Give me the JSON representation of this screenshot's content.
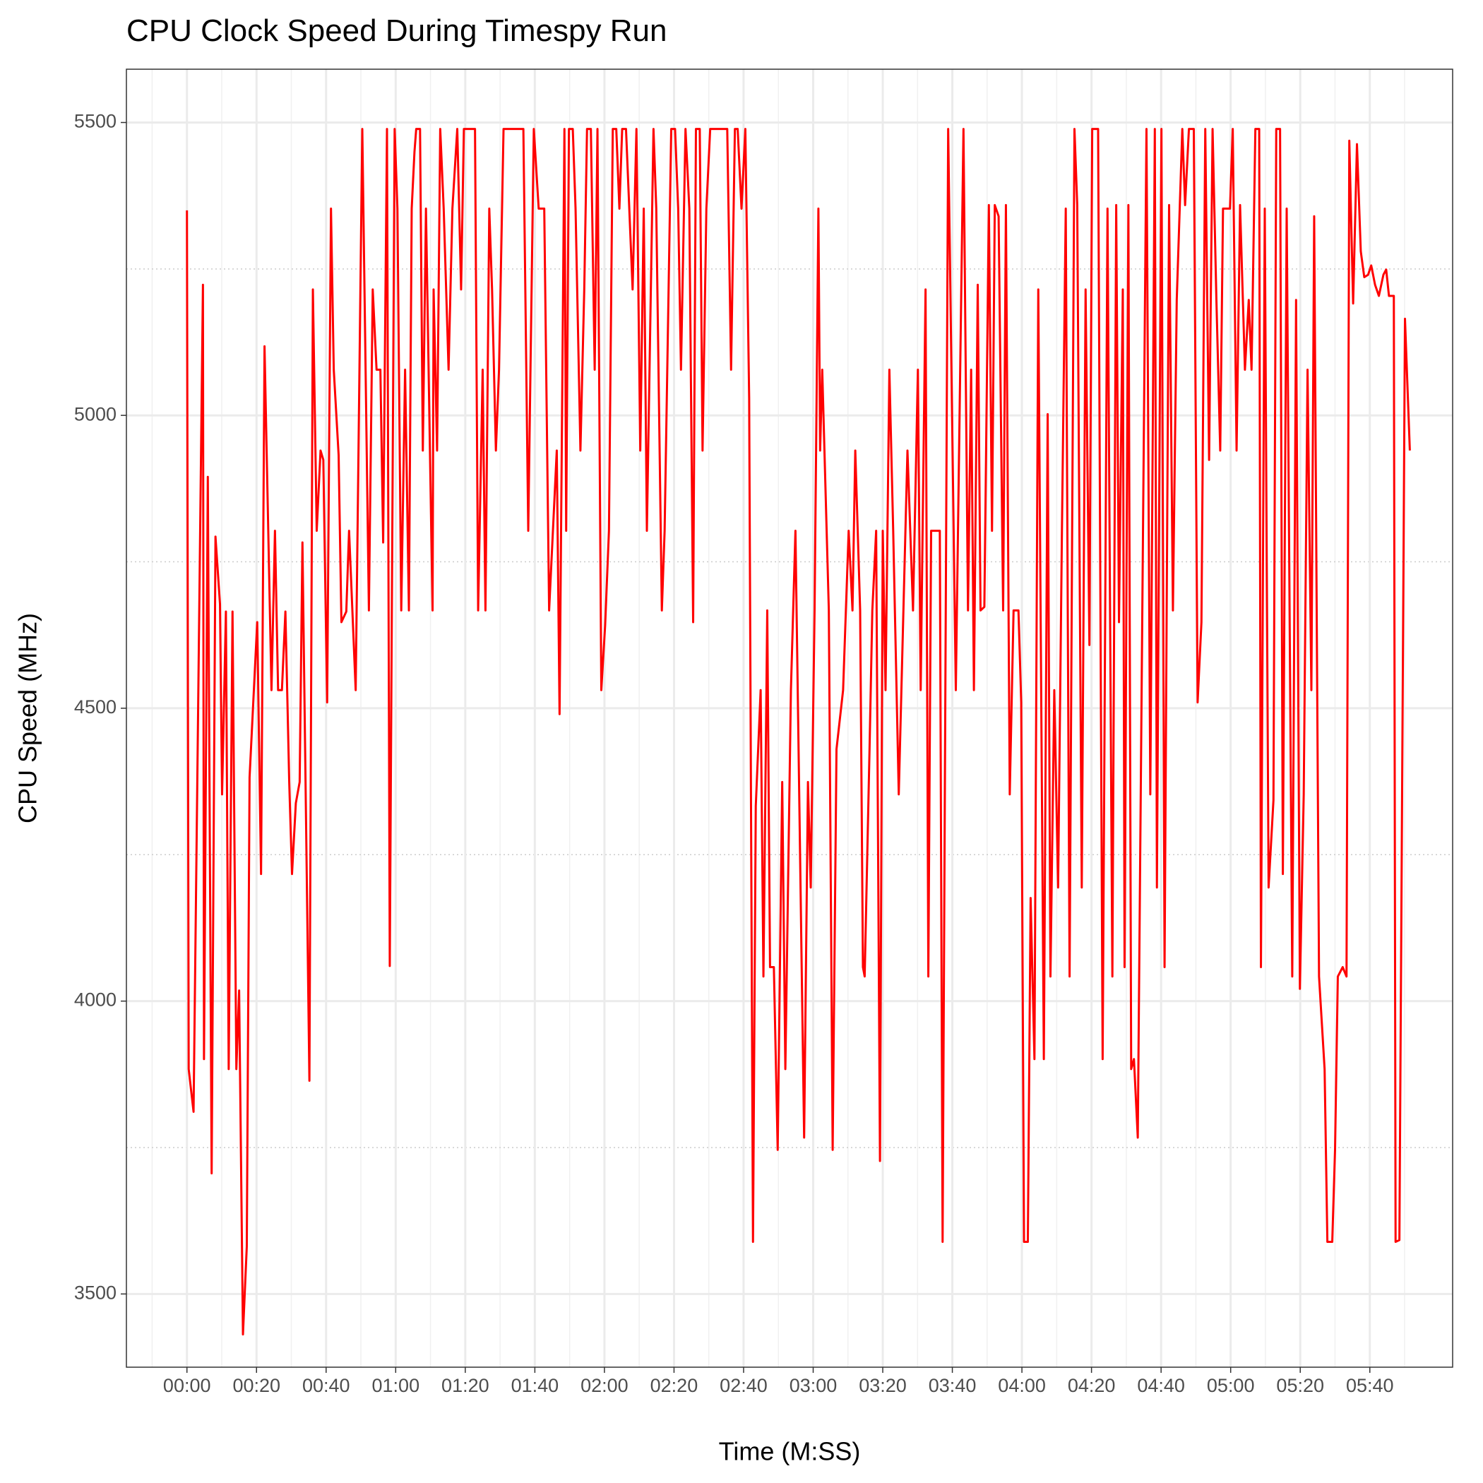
{
  "chart_data": {
    "type": "line",
    "title": "CPU Clock Speed During Timespy Run",
    "x_label": "Time (M:SS)",
    "y_label": "CPU Speed (MHz)",
    "color": "#ff0000",
    "grid": true,
    "xlim": [
      -17.4,
      363.8
    ],
    "ylim": [
      3375,
      5591
    ],
    "xticks": [
      {
        "value": 0,
        "label": "00:00"
      },
      {
        "value": 20,
        "label": "00:20"
      },
      {
        "value": 40,
        "label": "00:40"
      },
      {
        "value": 60,
        "label": "01:00"
      },
      {
        "value": 80,
        "label": "01:20"
      },
      {
        "value": 100,
        "label": "01:40"
      },
      {
        "value": 120,
        "label": "02:00"
      },
      {
        "value": 140,
        "label": "02:20"
      },
      {
        "value": 160,
        "label": "02:40"
      },
      {
        "value": 180,
        "label": "03:00"
      },
      {
        "value": 200,
        "label": "03:20"
      },
      {
        "value": 220,
        "label": "03:40"
      },
      {
        "value": 240,
        "label": "04:00"
      },
      {
        "value": 260,
        "label": "04:20"
      },
      {
        "value": 280,
        "label": "04:40"
      },
      {
        "value": 300,
        "label": "05:00"
      },
      {
        "value": 320,
        "label": "05:20"
      },
      {
        "value": 340,
        "label": "05:40"
      }
    ],
    "yticks": [
      3500,
      4000,
      4500,
      5000,
      5500
    ],
    "xminorticks": [
      -10,
      10,
      30,
      50,
      70,
      90,
      110,
      130,
      150,
      170,
      190,
      210,
      230,
      250,
      270,
      290,
      310,
      330,
      350
    ],
    "yminorticks": [
      3750,
      4250,
      4750,
      5250
    ],
    "x": [
      0,
      0.5,
      1.9,
      4.6,
      4.9,
      6.0,
      7.1,
      8.2,
      9.5,
      10.1,
      11.2,
      12.0,
      13.1,
      14.2,
      15.0,
      16.1,
      17.2,
      18.0,
      20.2,
      21.3,
      22.3,
      24.3,
      25.3,
      26.2,
      27.3,
      28.3,
      29.4,
      30.2,
      31.3,
      32.4,
      33.2,
      35.2,
      36.2,
      37.3,
      38.4,
      39.2,
      40.3,
      41.4,
      42.2,
      43.6,
      44.4,
      45.8,
      46.6,
      48.5,
      50.4,
      52.3,
      53.4,
      54.5,
      55.6,
      56.4,
      57.5,
      58.3,
      59.7,
      60.5,
      61.6,
      62.7,
      63.8,
      64.6,
      65.4,
      65.9,
      67.0,
      67.8,
      68.7,
      70.6,
      70.9,
      71.9,
      72.8,
      73.8,
      75.2,
      76.3,
      77.7,
      78.8,
      79.6,
      82.8,
      83.7,
      85.0,
      85.8,
      86.9,
      87.7,
      88.8,
      89.7,
      91.0,
      96.7,
      98.1,
      99.7,
      101.1,
      102.7,
      104.1,
      106.3,
      107.1,
      108.5,
      109.0,
      109.8,
      110.9,
      111.7,
      113.1,
      114.2,
      115.0,
      116.1,
      117.2,
      118.0,
      119.1,
      120.2,
      121.3,
      122.4,
      123.4,
      124.3,
      125.1,
      126.2,
      128.1,
      129.2,
      130.3,
      131.3,
      132.2,
      134.1,
      134.9,
      136.5,
      137.3,
      139.2,
      140.3,
      141.2,
      142.0,
      143.3,
      144.4,
      145.5,
      146.3,
      147.4,
      148.2,
      149.3,
      150.4,
      155.3,
      156.4,
      157.5,
      158.3,
      159.4,
      160.5,
      161.6,
      162.7,
      163.5,
      164.9,
      165.7,
      166.8,
      167.6,
      168.7,
      169.8,
      171.1,
      172.0,
      173.6,
      174.9,
      177.4,
      178.5,
      179.3,
      180.4,
      181.5,
      182.0,
      182.6,
      184.5,
      185.6,
      186.7,
      188.6,
      189.4,
      190.2,
      191.3,
      192.1,
      193.5,
      194.3,
      194.8,
      196.2,
      197.0,
      198.1,
      199.2,
      200.0,
      200.8,
      201.9,
      203.0,
      204.6,
      207.1,
      208.7,
      210.1,
      210.9,
      212.3,
      213.1,
      213.9,
      216.4,
      217.2,
      218.8,
      221.0,
      223.2,
      224.5,
      225.4,
      226.2,
      227.3,
      228.1,
      229.2,
      230.5,
      231.4,
      232.2,
      233.3,
      234.6,
      235.4,
      236.5,
      237.6,
      239.0,
      239.8,
      240.6,
      241.7,
      242.5,
      243.6,
      244.7,
      246.3,
      247.4,
      248.2,
      249.3,
      250.4,
      251.5,
      252.6,
      253.7,
      255.1,
      255.9,
      257.2,
      258.3,
      259.4,
      260.2,
      261.9,
      263.2,
      264.6,
      266.0,
      267.1,
      267.9,
      269.0,
      269.5,
      270.6,
      271.4,
      272.2,
      273.3,
      275.8,
      276.9,
      278.2,
      278.8,
      280.1,
      281.0,
      282.3,
      283.4,
      284.5,
      286.1,
      286.9,
      288.0,
      289.4,
      290.5,
      291.6,
      292.7,
      293.8,
      294.8,
      295.9,
      297.0,
      297.8,
      299.8,
      300.6,
      301.7,
      302.7,
      304.1,
      305.2,
      306.0,
      307.1,
      308.2,
      308.7,
      309.8,
      310.9,
      312.3,
      313.1,
      314.2,
      315.0,
      316.1,
      317.7,
      318.8,
      319.9,
      321.0,
      322.1,
      323.2,
      324.0,
      325.4,
      327.0,
      327.8,
      329.2,
      330.0,
      330.8,
      332.2,
      333.3,
      334.1,
      335.2,
      336.3,
      337.4,
      338.4,
      339.5,
      340.4,
      341.5,
      342.6,
      343.9,
      344.7,
      345.5,
      346.9,
      347.4,
      348.5,
      350.1,
      351.5
    ],
    "values": [
      5350,
      3884,
      3811,
      5223,
      3901,
      4895,
      3706,
      4793,
      4678,
      4353,
      4665,
      3884,
      4665,
      3884,
      4018,
      3431,
      3581,
      4382,
      4647,
      4217,
      5118,
      4531,
      4803,
      4531,
      4531,
      4665,
      4374,
      4217,
      4338,
      4374,
      4783,
      3864,
      5215,
      4803,
      4940,
      4924,
      4510,
      5353,
      5078,
      4932,
      4647,
      4665,
      4803,
      4531,
      5489,
      4667,
      5215,
      5078,
      5078,
      4783,
      5489,
      4060,
      5489,
      5353,
      4667,
      5078,
      4667,
      5353,
      5450,
      5489,
      5489,
      4940,
      5353,
      4667,
      5215,
      4940,
      5489,
      5353,
      5078,
      5353,
      5489,
      5215,
      5489,
      5489,
      4667,
      5078,
      4667,
      5353,
      5215,
      4940,
      5078,
      5489,
      5489,
      4803,
      5489,
      5353,
      5353,
      4667,
      4940,
      4490,
      5489,
      4803,
      5489,
      5489,
      5353,
      4940,
      5215,
      5489,
      5489,
      5078,
      5489,
      4531,
      4641,
      4803,
      5489,
      5489,
      5353,
      5489,
      5489,
      5215,
      5489,
      4940,
      5353,
      4803,
      5489,
      5353,
      4667,
      4803,
      5489,
      5489,
      5353,
      5078,
      5489,
      5353,
      4647,
      5489,
      5489,
      4940,
      5353,
      5489,
      5489,
      5078,
      5489,
      5489,
      5353,
      5489,
      5029,
      3589,
      4333,
      4531,
      4042,
      4667,
      4058,
      4058,
      3746,
      4374,
      3884,
      4531,
      4803,
      3767,
      4374,
      4194,
      4667,
      5353,
      4940,
      5078,
      4667,
      3746,
      4430,
      4531,
      4667,
      4803,
      4667,
      4940,
      4667,
      4058,
      4042,
      4430,
      4667,
      4803,
      3727,
      4803,
      4531,
      5078,
      4803,
      4353,
      4940,
      4667,
      5078,
      4531,
      5215,
      4042,
      4803,
      4803,
      3589,
      5489,
      4531,
      5489,
      4667,
      5078,
      4531,
      5223,
      4667,
      4673,
      5359,
      4803,
      5359,
      5340,
      4667,
      5359,
      4353,
      4667,
      4667,
      4510,
      3589,
      3589,
      4176,
      3901,
      5215,
      3901,
      5002,
      4042,
      4531,
      4194,
      4803,
      5353,
      4042,
      5489,
      5359,
      4194,
      5215,
      4608,
      5489,
      5489,
      3901,
      5353,
      4042,
      5359,
      4647,
      5215,
      4058,
      5359,
      3884,
      3901,
      3767,
      5489,
      4353,
      5489,
      4194,
      5489,
      4058,
      5359,
      4667,
      5197,
      5489,
      5359,
      5489,
      5489,
      4510,
      4647,
      5489,
      4924,
      5489,
      5197,
      4940,
      5353,
      5353,
      5489,
      4940,
      5359,
      5078,
      5197,
      5078,
      5489,
      5489,
      4058,
      5353,
      4194,
      4343,
      5489,
      5489,
      4217,
      5353,
      4042,
      5197,
      4021,
      4353,
      5078,
      4531,
      5340,
      4042,
      3884,
      3589,
      3589,
      3746,
      4042,
      4058,
      4042,
      5469,
      5191,
      5463,
      5280,
      5236,
      5240,
      5256,
      5223,
      5204,
      5240,
      5249,
      5204,
      5204,
      3589,
      3592,
      5165,
      4940
    ]
  }
}
